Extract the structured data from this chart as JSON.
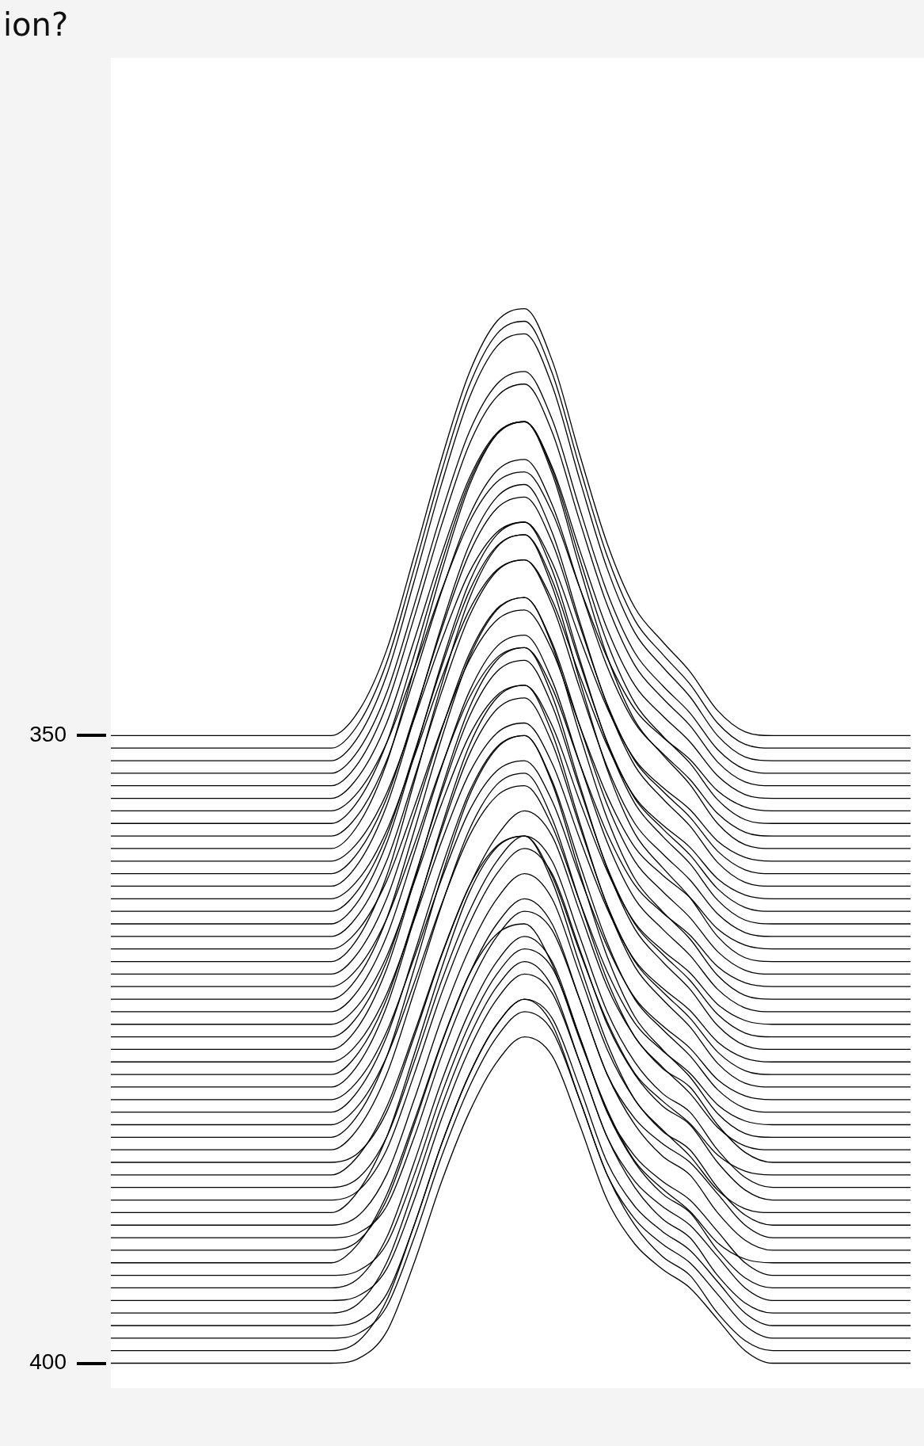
{
  "chart_data": {
    "type": "line",
    "title": "ion?",
    "color": "#000000",
    "tick_labels": "y",
    "categories": [
      null,
      null,
      null,
      null,
      null,
      null,
      null,
      null,
      null,
      null,
      null,
      null,
      null,
      null,
      null,
      null,
      null,
      null,
      null,
      null,
      null,
      null,
      null,
      null,
      null,
      null,
      null,
      null,
      null,
      null
    ],
    "ylim": [
      402,
      296
    ],
    "yticks": [
      350,
      400
    ],
    "series": [
      {
        "values": [
          350,
          350,
          350,
          350,
          350,
          350,
          350,
          350,
          350,
          348,
          343.2,
          335.7,
          327.9,
          321.1,
          317,
          316,
          320.1,
          327.6,
          334.7,
          339.8,
          342.5,
          344.9,
          348,
          349.7,
          350,
          350,
          350,
          350,
          350,
          350
        ]
      },
      {
        "values": [
          351,
          351,
          351,
          351,
          351,
          351,
          351,
          351,
          351,
          349,
          344.2,
          336.7,
          328.9,
          322.1,
          318,
          317,
          321.1,
          328.6,
          335.7,
          340.8,
          343.5,
          345.9,
          349,
          350.7,
          351,
          351,
          351,
          351,
          351,
          351
        ]
      },
      {
        "values": [
          352,
          352,
          352,
          352,
          352,
          352,
          352,
          352,
          352,
          350,
          345.2,
          337.7,
          329.9,
          323.1,
          319,
          318,
          322.1,
          329.6,
          336.7,
          341.8,
          344.5,
          346.9,
          350,
          351.7,
          352,
          352,
          352,
          352,
          352,
          352
        ]
      },
      {
        "values": [
          353,
          353,
          353,
          353,
          353,
          353,
          353,
          353,
          353,
          351.1,
          346.6,
          339.6,
          332.2,
          325.8,
          322,
          321,
          324.8,
          331.9,
          338.6,
          343.4,
          346,
          348.2,
          351.1,
          352.7,
          353,
          353,
          353,
          353,
          353,
          353
        ]
      },
      {
        "values": [
          354,
          354,
          354,
          354,
          354,
          354,
          354,
          354,
          354,
          352.1,
          347.6,
          340.6,
          333.2,
          326.8,
          323,
          322,
          325.8,
          332.9,
          339.6,
          344.4,
          347,
          349.2,
          352.1,
          353.7,
          354,
          354,
          354,
          354,
          354,
          354
        ]
      },
      {
        "values": [
          355,
          355,
          355,
          355,
          355,
          355,
          355,
          355,
          355,
          353.2,
          349,
          342.4,
          335.5,
          329.5,
          325.9,
          325,
          328.6,
          335.2,
          341.5,
          346,
          348.4,
          350.5,
          353.2,
          354.7,
          355,
          355,
          355,
          355,
          355,
          355
        ]
      },
      {
        "values": [
          356,
          356,
          356,
          356,
          356,
          356,
          356,
          356,
          356,
          354.4,
          350.6,
          344.7,
          338.4,
          333,
          329.8,
          329,
          332.2,
          338.2,
          343.8,
          347.9,
          350.1,
          351.9,
          354.4,
          355.7,
          356,
          356,
          356,
          356,
          356,
          356
        ]
      },
      {
        "values": [
          357,
          357,
          357,
          357,
          357,
          357,
          357,
          357,
          357,
          355.1,
          350.6,
          343.6,
          336.2,
          329.8,
          326,
          325,
          328.8,
          335.9,
          342.6,
          347.4,
          350,
          352.2,
          355.1,
          356.7,
          357,
          357,
          357,
          357,
          357,
          357
        ]
      },
      {
        "values": [
          358,
          358,
          358,
          358,
          358,
          358,
          358,
          358,
          358,
          356.2,
          352,
          345.4,
          338.5,
          332.5,
          328.9,
          328,
          331.6,
          338.2,
          344.5,
          349,
          351.4,
          353.5,
          356.2,
          357.7,
          358,
          358,
          358,
          358,
          358,
          358
        ]
      },
      {
        "values": [
          359,
          359,
          359,
          359,
          359,
          359,
          359,
          359,
          359,
          357,
          352.2,
          344.7,
          336.9,
          330.1,
          326,
          325,
          329.1,
          336.6,
          343.7,
          348.8,
          351.5,
          353.9,
          357,
          358.7,
          359,
          359,
          359,
          359,
          359,
          359
        ]
      },
      {
        "values": [
          360,
          360,
          360,
          360,
          360,
          360,
          360,
          360,
          360,
          358.4,
          354.6,
          348.7,
          342.4,
          337,
          333.8,
          333,
          336.2,
          342.2,
          347.8,
          351.9,
          354.1,
          355.9,
          358.4,
          359.7,
          360,
          360,
          360,
          360,
          360,
          360
        ]
      },
      {
        "values": [
          361,
          361,
          361,
          361,
          361,
          361,
          361,
          361,
          361,
          359.2,
          355,
          348.4,
          341.5,
          335.5,
          331.9,
          331,
          334.6,
          341.2,
          347.5,
          352,
          354.4,
          356.5,
          359.2,
          360.7,
          361,
          361,
          361,
          361,
          361,
          361
        ]
      },
      {
        "values": [
          362,
          362,
          362,
          362,
          362,
          362,
          362,
          362,
          362,
          360.1,
          355.6,
          348.6,
          341.2,
          334.8,
          331,
          330,
          333.8,
          340.9,
          347.6,
          352.4,
          355,
          357.2,
          360.1,
          361.7,
          362,
          362,
          362,
          362,
          362,
          362
        ]
      },
      {
        "values": [
          363,
          363,
          363,
          363,
          363,
          363,
          363,
          363,
          363,
          361.4,
          357.6,
          351.7,
          345.4,
          340,
          336.8,
          336,
          339.2,
          345.2,
          350.8,
          354.9,
          357.1,
          358.9,
          361.4,
          362.7,
          363,
          363,
          363,
          363,
          363,
          363
        ]
      },
      {
        "values": [
          364,
          364,
          364,
          364,
          364,
          364,
          364,
          364,
          364,
          362.2,
          358,
          351.4,
          344.5,
          338.5,
          334.9,
          334,
          337.6,
          344.2,
          350.5,
          355,
          357.4,
          359.5,
          362.2,
          363.7,
          364,
          364,
          364,
          364,
          364,
          364
        ]
      },
      {
        "values": [
          365,
          365,
          365,
          365,
          365,
          365,
          365,
          365,
          365,
          363.1,
          358.6,
          351.6,
          344.2,
          337.8,
          334,
          333,
          336.8,
          343.9,
          350.6,
          355.4,
          358,
          360.2,
          363.1,
          364.7,
          365,
          365,
          365,
          365,
          365,
          365
        ]
      },
      {
        "values": [
          366,
          366,
          366,
          366,
          366,
          366,
          366,
          366,
          366,
          364.2,
          360,
          353.4,
          346.5,
          340.5,
          336.9,
          336,
          339.6,
          346.2,
          352.5,
          357,
          359.4,
          361.5,
          364.2,
          365.7,
          366,
          366,
          366,
          366,
          366,
          366
        ]
      },
      {
        "values": [
          367,
          367,
          367,
          367,
          367,
          367,
          367,
          367,
          367,
          365.4,
          361.6,
          355.7,
          349.4,
          344,
          340.8,
          340,
          343.2,
          349.2,
          354.8,
          358.9,
          361.1,
          362.9,
          365.4,
          366.7,
          367,
          367,
          367,
          367,
          367,
          367
        ]
      },
      {
        "values": [
          368,
          368,
          368,
          368,
          368,
          368,
          368,
          368,
          368,
          366,
          361.2,
          353.7,
          345.9,
          339.1,
          335,
          334,
          338.1,
          345.6,
          352.7,
          357.8,
          360.5,
          362.9,
          366,
          367.7,
          368,
          368,
          368,
          368,
          368,
          368
        ]
      },
      {
        "values": [
          369,
          369,
          369,
          369,
          369,
          369,
          369,
          369,
          369,
          367.2,
          363,
          356.4,
          349.5,
          343.5,
          339.9,
          339,
          342.6,
          349.2,
          355.5,
          360,
          362.4,
          364.5,
          367.2,
          368.7,
          369,
          369,
          369,
          369,
          369,
          369
        ]
      },
      {
        "values": [
          370,
          370,
          370,
          370,
          370,
          370,
          370,
          370,
          370,
          368.4,
          364.6,
          358.7,
          352.4,
          347,
          343.8,
          343,
          346.2,
          352.2,
          357.8,
          361.9,
          364.1,
          365.9,
          368.4,
          369.7,
          370,
          370,
          370,
          370,
          370,
          370
        ]
      },
      {
        "values": [
          371,
          371,
          371,
          371,
          371,
          371,
          371,
          371,
          371,
          369.1,
          364.6,
          357.6,
          350.2,
          343.8,
          340,
          339,
          342.8,
          349.9,
          356.6,
          361.4,
          364,
          366.2,
          369.1,
          370.7,
          371,
          371,
          371,
          371,
          371,
          371
        ]
      },
      {
        "values": [
          372,
          372,
          372,
          372,
          372,
          372,
          372,
          372,
          372,
          370.2,
          366,
          359.4,
          352.5,
          346.5,
          342.9,
          342,
          345.6,
          352.2,
          358.5,
          363,
          365.4,
          367.5,
          370.2,
          371.7,
          372,
          372,
          372,
          372,
          372,
          372
        ]
      },
      {
        "values": [
          373,
          373,
          373,
          373,
          373,
          373,
          373,
          373,
          373,
          371.4,
          367.6,
          361.7,
          355.4,
          350,
          346.8,
          346,
          349.2,
          355.2,
          360.8,
          364.9,
          367.1,
          368.9,
          371.4,
          372.7,
          373,
          373,
          373,
          373,
          373,
          373
        ]
      },
      {
        "values": [
          374,
          374,
          374,
          374,
          374,
          374,
          374,
          374,
          374,
          372.2,
          368,
          361.4,
          354.5,
          348.5,
          344.9,
          344,
          347.6,
          354.2,
          360.5,
          365,
          367.4,
          369.5,
          372.2,
          373.7,
          374,
          374,
          374,
          374,
          374,
          374
        ]
      },
      {
        "values": [
          375,
          375,
          375,
          375,
          375,
          375,
          375,
          375,
          375,
          373.1,
          368.6,
          361.6,
          354.2,
          347.8,
          344,
          343,
          346.8,
          353.9,
          360.6,
          365.4,
          368,
          370.2,
          373.1,
          374.7,
          375,
          375,
          375,
          375,
          375,
          375
        ]
      },
      {
        "values": [
          376,
          376,
          376,
          376,
          376,
          376,
          376,
          376,
          376,
          374.4,
          370.6,
          364.7,
          358.4,
          353,
          349.8,
          349,
          352.2,
          358.2,
          363.8,
          367.9,
          370.1,
          371.9,
          374.4,
          375.7,
          376,
          376,
          376,
          376,
          376,
          376
        ]
      },
      {
        "values": [
          377,
          377,
          377,
          377,
          377,
          377,
          377,
          377,
          377,
          375.2,
          371,
          364.4,
          357.5,
          351.5,
          347.9,
          347,
          350.6,
          357.2,
          363.5,
          368,
          370.4,
          372.5,
          375.2,
          376.7,
          377,
          377,
          377,
          377,
          377,
          377
        ]
      },
      {
        "values": [
          378,
          378,
          378,
          378,
          378,
          378,
          378,
          378,
          378,
          376.1,
          371.6,
          364.6,
          357.2,
          350.8,
          347,
          346,
          349.8,
          356.9,
          363.6,
          368.4,
          371,
          373.2,
          376.1,
          377.7,
          378,
          378,
          378,
          378,
          378,
          378
        ]
      },
      {
        "values": [
          379,
          379,
          379,
          379,
          379,
          379,
          379,
          379,
          379,
          377.4,
          373.6,
          367.7,
          361.4,
          356,
          352.8,
          352,
          355.2,
          361.2,
          366.8,
          370.9,
          373.1,
          374.9,
          377.4,
          378.7,
          379,
          379,
          379,
          379,
          379,
          379
        ]
      },
      {
        "values": [
          380,
          380,
          380,
          380,
          380,
          380,
          380,
          380,
          380,
          378.2,
          374,
          367.4,
          360.5,
          354.5,
          350.9,
          350,
          353.6,
          360.2,
          366.5,
          371,
          373.4,
          375.5,
          378.2,
          379.7,
          380,
          380,
          380,
          380,
          380,
          380
        ]
      },
      {
        "values": [
          381,
          381,
          381,
          381,
          381,
          381,
          381,
          381,
          381,
          379.4,
          375.6,
          369.7,
          363.4,
          358,
          354.8,
          354,
          357.2,
          363.2,
          368.8,
          372.9,
          375.1,
          376.9,
          379.4,
          380.7,
          381,
          381,
          381,
          381,
          381,
          381
        ]
      },
      {
        "values": [
          382,
          382,
          382,
          382,
          382,
          382,
          382,
          382,
          382,
          380.1,
          375.6,
          368.6,
          361.2,
          354.8,
          351,
          350,
          353.8,
          360.9,
          367.6,
          372.4,
          375,
          377.2,
          380.1,
          381.7,
          382,
          382,
          382,
          382,
          382,
          382
        ]
      },
      {
        "values": [
          383,
          383,
          383,
          383,
          383,
          383,
          383,
          383,
          383,
          381.2,
          377,
          370.4,
          363.5,
          357.5,
          353.9,
          353,
          356.6,
          363.2,
          369.5,
          374,
          376.4,
          378.5,
          381.2,
          382.7,
          383,
          383,
          383,
          383,
          383,
          383
        ]
      },
      {
        "values": [
          384,
          384,
          384,
          384,
          384,
          384,
          384,
          384,
          384,
          383.2,
          380,
          374,
          367.5,
          362,
          358,
          356,
          358,
          364,
          370,
          374,
          376.5,
          378,
          381,
          383.2,
          384,
          384,
          384,
          384,
          384,
          384
        ]
      },
      {
        "values": [
          385,
          385,
          385,
          385,
          385,
          385,
          385,
          385,
          385,
          383.4,
          379.6,
          373.7,
          367.4,
          362,
          358.8,
          358,
          361.2,
          367.2,
          372.8,
          376.9,
          379.1,
          380.9,
          383.4,
          384.7,
          385,
          385,
          385,
          385,
          385,
          385
        ]
      },
      {
        "values": [
          386,
          386,
          386,
          386,
          386,
          386,
          386,
          386,
          386,
          385.2,
          382,
          376,
          369.5,
          364,
          360,
          358,
          360,
          366,
          372,
          376,
          378.5,
          380,
          383,
          385.2,
          386,
          386,
          386,
          386,
          386,
          386
        ]
      },
      {
        "values": [
          387,
          387,
          387,
          387,
          387,
          387,
          387,
          387,
          387,
          386.2,
          383,
          377,
          370.5,
          365,
          361,
          359,
          361,
          367,
          373,
          377,
          379.5,
          381,
          384,
          386.2,
          387,
          387,
          387,
          387,
          387,
          387
        ]
      },
      {
        "values": [
          388,
          388,
          388,
          388,
          388,
          388,
          388,
          388,
          388,
          386.2,
          382,
          375.4,
          368.5,
          362.5,
          358.9,
          358,
          361.6,
          368.2,
          374.5,
          379,
          381.4,
          383.5,
          386.2,
          387.7,
          388,
          388,
          388,
          388,
          388,
          388
        ]
      },
      {
        "values": [
          389,
          389,
          389,
          389,
          389,
          389,
          389,
          389,
          389,
          388.2,
          385,
          379,
          372.5,
          367,
          363,
          361,
          363,
          369,
          375,
          379,
          381.5,
          383,
          386,
          388.2,
          389,
          389,
          389,
          389,
          389,
          389
        ]
      },
      {
        "values": [
          390,
          390,
          390,
          390,
          390,
          390,
          390,
          390,
          390,
          389.6,
          387.5,
          382,
          375.5,
          370,
          366,
          364,
          365.5,
          371,
          377,
          380.5,
          382.5,
          384,
          386.5,
          389,
          390,
          390,
          390,
          390,
          390,
          390
        ]
      },
      {
        "values": [
          391,
          391,
          391,
          391,
          391,
          391,
          391,
          391,
          391,
          390.2,
          387,
          381,
          374.5,
          369,
          365,
          363,
          365,
          371,
          377,
          381,
          383.5,
          385,
          388,
          390.2,
          391,
          391,
          391,
          391,
          391,
          391
        ]
      },
      {
        "values": [
          392,
          392,
          392,
          392,
          392,
          392,
          392,
          392,
          392,
          390.4,
          386.6,
          380.7,
          374.4,
          369,
          365.8,
          365,
          368.2,
          374.2,
          379.8,
          383.9,
          386.1,
          387.9,
          390.4,
          391.7,
          392,
          392,
          392,
          392,
          392,
          392
        ]
      },
      {
        "values": [
          393,
          393,
          393,
          393,
          393,
          393,
          393,
          393,
          393,
          392.6,
          390.5,
          385,
          378.5,
          373,
          369,
          367,
          368.5,
          374,
          380,
          383.5,
          385.5,
          387,
          389.5,
          392,
          393,
          393,
          393,
          393,
          393,
          393
        ]
      },
      {
        "values": [
          394,
          394,
          394,
          394,
          394,
          394,
          394,
          394,
          394,
          393.2,
          390,
          384,
          377.5,
          372,
          368,
          366,
          368,
          374,
          380,
          384,
          386.5,
          388,
          391,
          393.2,
          394,
          394,
          394,
          394,
          394,
          394
        ]
      },
      {
        "values": [
          395,
          395,
          395,
          395,
          395,
          395,
          395,
          395,
          395,
          394.6,
          392.5,
          387,
          380.5,
          375,
          371,
          369,
          370.5,
          376,
          382,
          385.5,
          387.5,
          389,
          391.5,
          394,
          395,
          395,
          395,
          395,
          395,
          395
        ]
      },
      {
        "values": [
          396,
          396,
          396,
          396,
          396,
          396,
          396,
          396,
          396,
          395.2,
          392,
          386,
          379.5,
          374,
          370,
          368,
          370,
          376,
          382,
          386,
          388.5,
          390,
          393,
          395.2,
          396,
          396,
          396,
          396,
          396,
          396
        ]
      },
      {
        "values": [
          397,
          397,
          397,
          397,
          397,
          397,
          397,
          397,
          397,
          396.6,
          394.5,
          389,
          382.5,
          377,
          373,
          371,
          372.5,
          378,
          384,
          387.5,
          389.5,
          391,
          393.5,
          396,
          397,
          397,
          397,
          397,
          397,
          397
        ]
      },
      {
        "values": [
          398,
          398,
          398,
          398,
          398,
          398,
          398,
          398,
          398,
          397.6,
          395.5,
          390,
          383.5,
          378,
          374,
          372,
          373.5,
          379,
          385,
          388.5,
          390.5,
          392,
          394.5,
          397,
          398,
          398,
          398,
          398,
          398,
          398
        ]
      },
      {
        "values": [
          399,
          399,
          399,
          399,
          399,
          399,
          399,
          399,
          399,
          398.2,
          395,
          389,
          382.5,
          377,
          373,
          371,
          373,
          379,
          385,
          389,
          391.5,
          393,
          396,
          398.2,
          399,
          399,
          399,
          399,
          399,
          399
        ]
      },
      {
        "values": [
          400,
          400,
          400,
          400,
          400,
          400,
          400,
          400,
          400,
          399.6,
          397.5,
          392,
          385.5,
          380,
          376,
          374,
          375.5,
          381,
          387,
          390.5,
          392.5,
          394,
          396.5,
          399,
          400,
          400,
          400,
          400,
          400,
          400
        ]
      }
    ]
  }
}
